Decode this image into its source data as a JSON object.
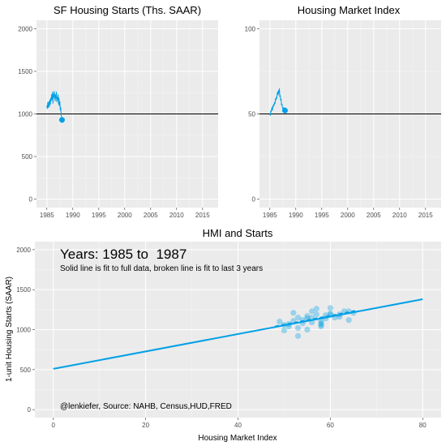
{
  "colors": {
    "series": "#00a0e6",
    "reference": "#000000",
    "panel": "#ebebeb"
  },
  "chart_data": [
    {
      "id": "hs",
      "type": "line",
      "title": "SF Housing Starts (Ths. SAAR)",
      "xlim": [
        1983,
        2018
      ],
      "ylim": [
        -100,
        2100
      ],
      "xticks": [
        1985,
        1990,
        1995,
        2000,
        2005,
        2010,
        2015
      ],
      "yticks": [
        0,
        500,
        1000,
        1500,
        2000
      ],
      "reference_y": 1000,
      "x": [
        1985.0,
        1985.083,
        1985.167,
        1985.25,
        1985.333,
        1985.417,
        1985.5,
        1985.583,
        1985.667,
        1985.75,
        1985.833,
        1985.917,
        1986.0,
        1986.083,
        1986.167,
        1986.25,
        1986.333,
        1986.417,
        1986.5,
        1986.583,
        1986.667,
        1986.75,
        1986.833,
        1986.917,
        1987.0,
        1987.083,
        1987.167,
        1987.25,
        1987.333,
        1987.417,
        1987.5,
        1987.583,
        1987.667,
        1987.75,
        1987.833,
        1987.917
      ],
      "y": [
        1100,
        1060,
        1140,
        1070,
        1120,
        1150,
        1080,
        1170,
        1110,
        1190,
        1150,
        1230,
        1170,
        1260,
        1120,
        1240,
        1190,
        1270,
        1210,
        1150,
        1230,
        1180,
        1260,
        1140,
        1200,
        1160,
        1230,
        1110,
        1190,
        1090,
        1150,
        1040,
        1080,
        990,
        960,
        930
      ],
      "last_point": {
        "x": 1987.917,
        "y": 930
      }
    },
    {
      "id": "hmi",
      "type": "line",
      "title": "Housing Market Index",
      "xlim": [
        1983,
        2018
      ],
      "ylim": [
        -5,
        105
      ],
      "xticks": [
        1985,
        1990,
        1995,
        2000,
        2005,
        2010,
        2015
      ],
      "yticks": [
        0,
        50,
        100
      ],
      "reference_y": 50,
      "x": [
        1985.0,
        1985.083,
        1985.167,
        1985.25,
        1985.333,
        1985.417,
        1985.5,
        1985.583,
        1985.667,
        1985.75,
        1985.833,
        1985.917,
        1986.0,
        1986.083,
        1986.167,
        1986.25,
        1986.333,
        1986.417,
        1986.5,
        1986.583,
        1986.667,
        1986.75,
        1986.833,
        1986.917,
        1987.0,
        1987.083,
        1987.167,
        1987.25,
        1987.333,
        1987.417,
        1987.5,
        1987.583,
        1987.667,
        1987.75,
        1987.833,
        1987.917
      ],
      "y": [
        50,
        49,
        52,
        51,
        53,
        54,
        52,
        55,
        54,
        56,
        55,
        57,
        56,
        59,
        58,
        60,
        59,
        62,
        63,
        61,
        64,
        62,
        65,
        60,
        61,
        58,
        59,
        55,
        56,
        54,
        53,
        52,
        54,
        53,
        52,
        52
      ],
      "last_point": {
        "x": 1987.917,
        "y": 52
      }
    },
    {
      "id": "scatter",
      "type": "scatter",
      "title": "HMI and Starts",
      "xlabel": "Housing Market Index",
      "ylabel": "1-unit Housing Starts (SAAR)",
      "xlim": [
        -4,
        84
      ],
      "ylim": [
        -100,
        2100
      ],
      "xticks": [
        0,
        20,
        40,
        60,
        80
      ],
      "yticks": [
        0,
        500,
        1000,
        1500,
        2000
      ],
      "points_x": [
        49,
        50,
        50,
        51,
        51,
        52,
        52,
        53,
        53,
        54,
        54,
        55,
        55,
        55,
        56,
        56,
        57,
        57,
        58,
        58,
        58,
        59,
        59,
        60,
        60,
        61,
        62,
        62,
        63,
        64,
        64,
        65,
        53,
        56,
        58,
        60
      ],
      "points_y": [
        1100,
        1060,
        990,
        1040,
        1070,
        1210,
        1110,
        1150,
        920,
        1080,
        1120,
        1170,
        1140,
        1000,
        1230,
        1150,
        1190,
        1260,
        1080,
        1110,
        1040,
        1180,
        1140,
        1270,
        1200,
        1150,
        1190,
        1160,
        1230,
        1230,
        1120,
        1210,
        1020,
        1090,
        1060,
        1190
      ],
      "fit_full": {
        "x": [
          0,
          80
        ],
        "y": [
          510,
          1380
        ]
      },
      "fit_recent": {
        "x": [
          48,
          66
        ],
        "y": [
          1040,
          1240
        ]
      },
      "annotation_years_label": "Years: 1985 to  1987",
      "annotation_note": "Solid line is fit to full data, broken line is fit to last 3 years",
      "caption": "@lenkiefer, Source: NAHB, Census,HUD,FRED"
    }
  ]
}
